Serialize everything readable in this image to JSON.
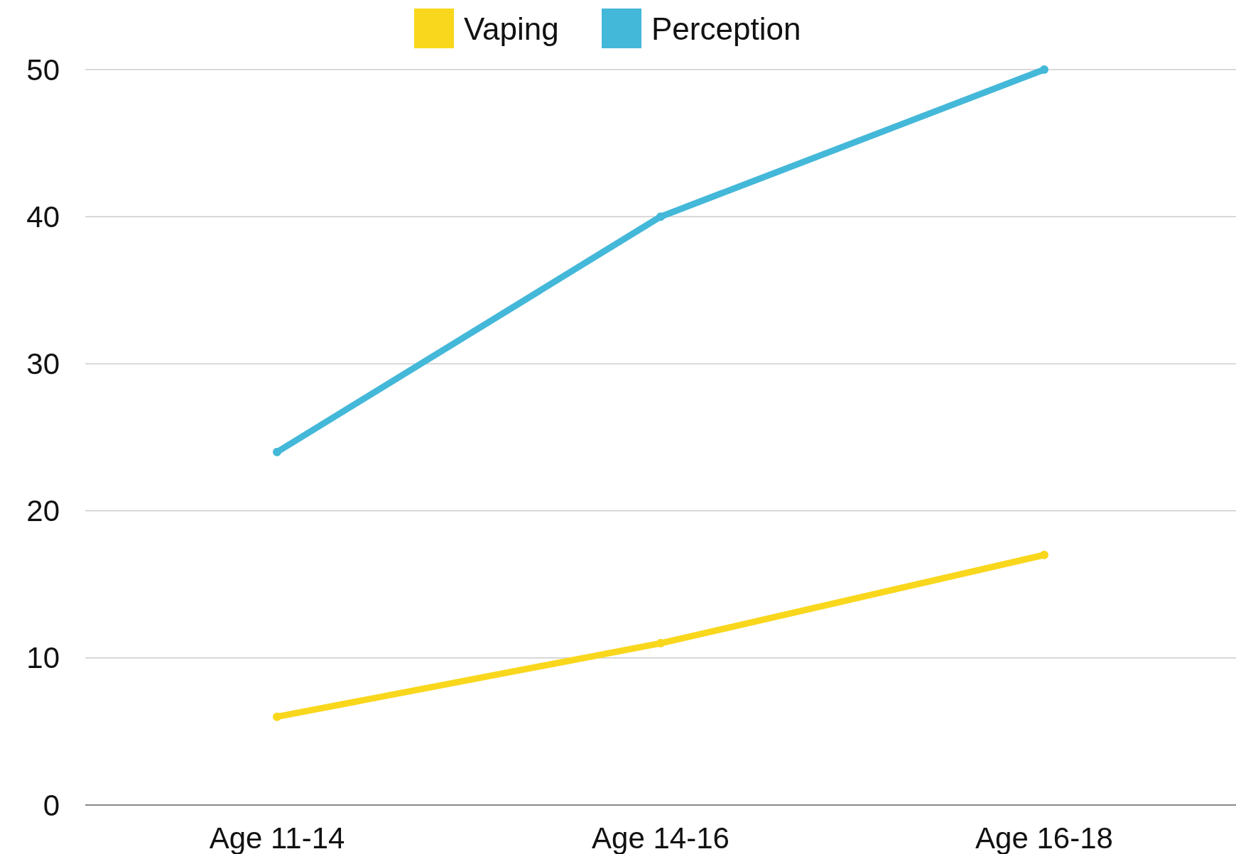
{
  "chart_data": {
    "type": "line",
    "categories": [
      "Age 11-14",
      "Age 14-16",
      "Age 16-18"
    ],
    "series": [
      {
        "name": "Vaping",
        "color": "#f9d71c",
        "values": [
          6,
          11,
          17
        ]
      },
      {
        "name": "Perception",
        "color": "#44b8d8",
        "values": [
          24,
          40,
          50
        ]
      }
    ],
    "ylim": [
      0,
      50
    ],
    "yticks": [
      0,
      10,
      20,
      30,
      40,
      50
    ],
    "grid": "y",
    "legend": "top",
    "marker": "circle",
    "line_style": "solid"
  }
}
